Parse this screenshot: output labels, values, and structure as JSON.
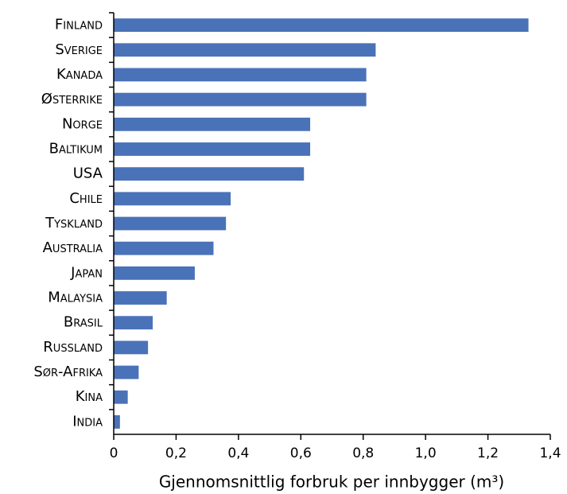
{
  "chart_data": {
    "type": "barh",
    "xlabel": "Gjennomsnittlig forbruk per innbygger (m³)",
    "categories": [
      "Finland",
      "Sverige",
      "Kanada",
      "Østerrike",
      "Norge",
      "Baltikum",
      "USA",
      "Chile",
      "Tyskland",
      "Australia",
      "Japan",
      "Malaysia",
      "Brasil",
      "Russland",
      "Sør-Afrika",
      "Kina",
      "India"
    ],
    "values": [
      1.33,
      0.84,
      0.81,
      0.81,
      0.63,
      0.63,
      0.61,
      0.375,
      0.36,
      0.32,
      0.26,
      0.17,
      0.125,
      0.11,
      0.08,
      0.045,
      0.02
    ],
    "color": "#4a72b8",
    "xlim": [
      0,
      1.4
    ],
    "xticks": [
      0,
      {
        "value": 0.2,
        "label": "0,2"
      },
      {
        "value": 0.4,
        "label": "0,4"
      },
      {
        "value": 0.6,
        "label": "0,6"
      },
      {
        "value": 0.8,
        "label": "0,8"
      },
      {
        "value": 1.0,
        "label": "1,0"
      },
      {
        "value": 1.2,
        "label": "1,2"
      },
      {
        "value": 1.4,
        "label": "1,4"
      }
    ]
  }
}
